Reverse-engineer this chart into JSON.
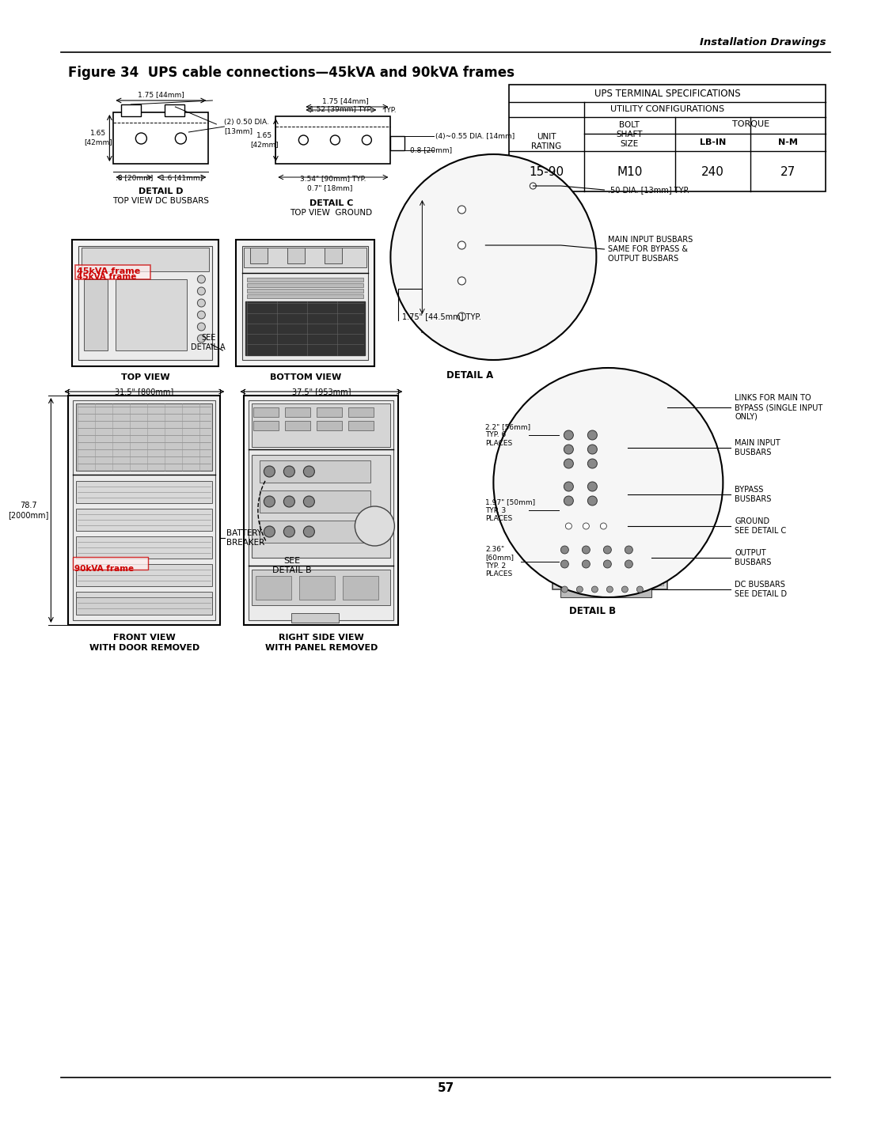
{
  "page_title": "Installation Drawings",
  "figure_title": "Figure 34  UPS cable connections—45kVA and 90kVA frames",
  "page_number": "57",
  "bg": "#ffffff",
  "lc": "#000000",
  "table": {
    "title": "UPS TERMINAL SPECIFICATIONS",
    "subtitle": "UTILITY CONFIGURATIONS",
    "torque": "TORQUE",
    "unit_rating": "UNIT\nRATING",
    "bolt_shaft": "BOLT\nSHAFT\nSIZE",
    "lb_in": "LB-IN",
    "n_m": "N-M",
    "val_rating": "15-90",
    "val_bolt": "M10",
    "val_lbin": "240",
    "val_nm": "27"
  },
  "detail_d_title": "DETAIL D",
  "detail_d_sub": "TOP VIEW DC BUSBARS",
  "detail_c_title": "DETAIL C",
  "detail_c_sub": "TOP VIEW  GROUND",
  "detail_a_title": "DETAIL A",
  "detail_b_title": "DETAIL B",
  "top_view": "TOP VIEW",
  "bottom_view": "BOTTOM VIEW",
  "see_detail_a": "SEE\nDETAIL A",
  "see_detail_b": "SEE\nDETAIL B",
  "front_view_l1": "FRONT VIEW",
  "front_view_l2": "WITH DOOR REMOVED",
  "right_view_l1": "RIGHT SIDE VIEW",
  "right_view_l2": "WITH PANEL REMOVED",
  "dim_31_5": "31.5\" [800mm]",
  "dim_78_7": "78.7\n[2000mm]",
  "dim_37_5": "37.5\" [953mm]",
  "battery_breaker": "BATTERY\nBREAKER",
  "frame_45": "45kVA frame",
  "frame_90": "90kVA frame",
  "links_label": "LINKS FOR MAIN TO\nBYPASS (SINGLE INPUT\nONLY)",
  "main_input": "MAIN INPUT\nBUSBARS",
  "bypass": "BYPASS\nBUSBARS",
  "ground": "GROUND\nSEE DETAIL C",
  "output_bus": "OUTPUT\nBUSBARS",
  "dc_bus": "DC BUSBARS\nSEE DETAIL D",
  "dim_2_2": "2.2\" [56mm]\nTYP. 6\nPLACES",
  "dim_1_97": "1.97\" [50mm]\nTYP. 3\nPLACES",
  "dim_2_36": "2.36\"\n[60mm]\nTYP. 2\nPLACES",
  "dia_50": ".50 DIA. [13mm] TYP.",
  "dim_1_75_a": "1.75\" [44.5mm] TYP.",
  "main_input_busbar_label": "MAIN INPUT BUSBARS\nSAME FOR BYPASS &\nOUTPUT BUSBARS",
  "dd_dim1": "1.75 [44mm]",
  "dd_dim2": "1.65\n[42mm]",
  "dd_dim3": "(2) 0.50 DIA.\n[13mm]",
  "dd_dim4": ".8 [20mm]",
  "dd_dim5": "1.6 [41mm]",
  "dc_dim1": "1.75 [44mm]",
  "dc_dim2": "TYP.",
  "dc_dim3": "1.52 [39mm] TYP.",
  "dc_dim4": "1.65\n[42mm]",
  "dc_dim5": "(4)~0.55 DIA. [14mm]",
  "dc_dim6": "0.8 [20mm]",
  "dc_dim7": "3.54\" [90mm] TYP.",
  "dc_dim8": "0.7\" [18mm]"
}
